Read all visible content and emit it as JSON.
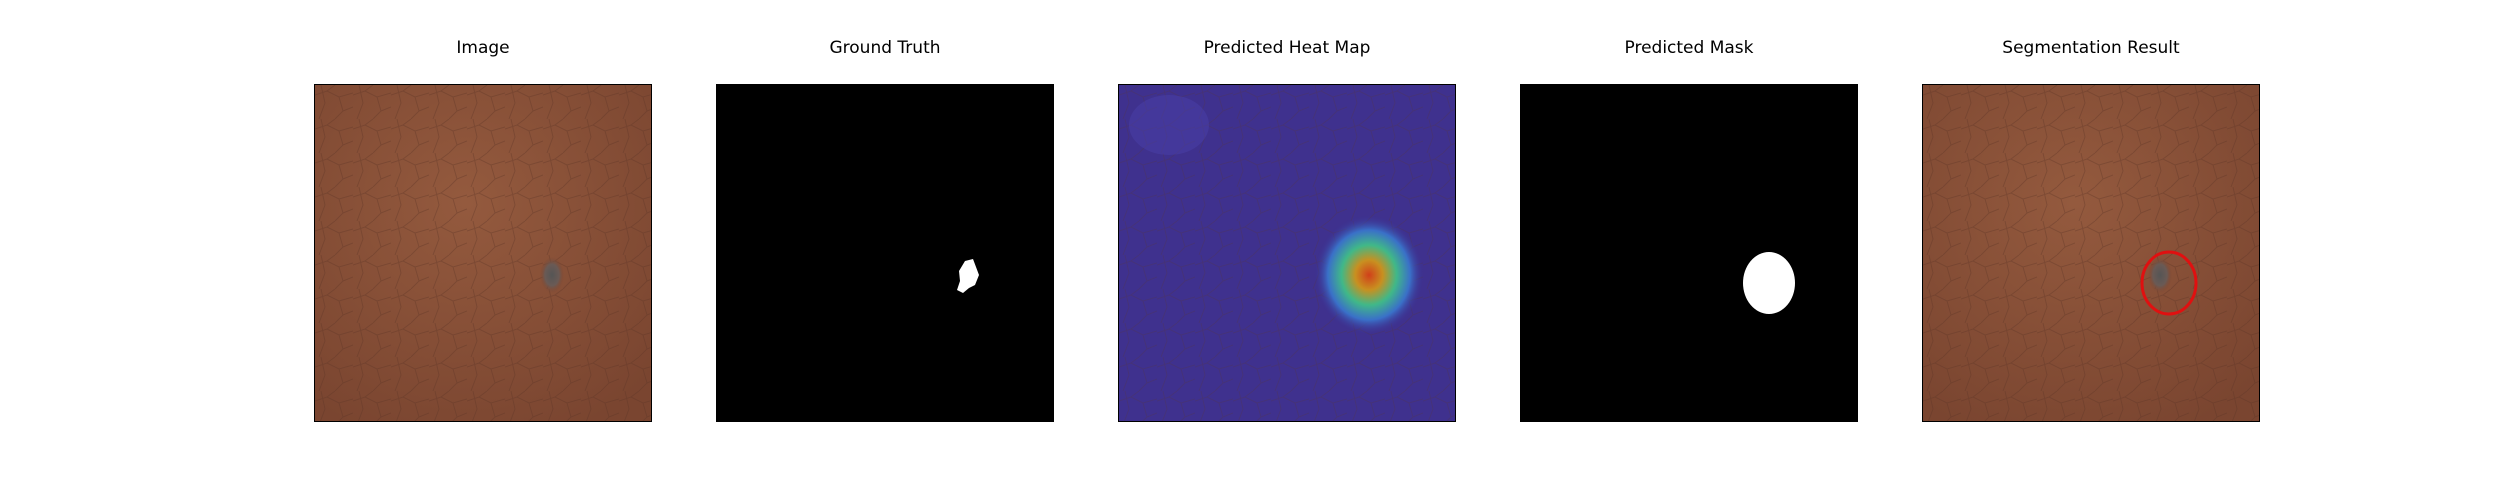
{
  "figure": {
    "panels": [
      {
        "title": "Image",
        "kind": "leather"
      },
      {
        "title": "Ground Truth",
        "kind": "gt"
      },
      {
        "title": "Predicted Heat Map",
        "kind": "heatmap"
      },
      {
        "title": "Predicted Mask",
        "kind": "mask"
      },
      {
        "title": "Segmentation Result",
        "kind": "result"
      }
    ],
    "colors": {
      "leather": "#8a5238",
      "leather_dark": "#6f3f2a",
      "mask_bg": "#000000",
      "mask_fg": "#ffffff",
      "heat_cold": "#3a2d8f",
      "heat_hot": "#c84818",
      "outline": "#e01010"
    }
  }
}
